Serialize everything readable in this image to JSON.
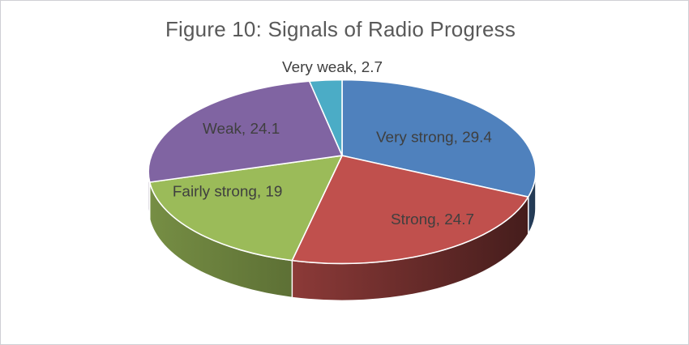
{
  "chart_data": {
    "type": "pie",
    "style": "3d-pie",
    "title": "Figure 10: Signals of Radio Progress",
    "categories": [
      "Very strong",
      "Strong",
      "Fairly strong",
      "Weak",
      "Very weak"
    ],
    "values": [
      29.4,
      24.7,
      19,
      24.1,
      2.7
    ],
    "data_labels": [
      "Very strong, 29.4",
      "Strong, 24.7",
      "Fairly strong, 19",
      "Weak, 24.1",
      "Very weak, 2.7"
    ],
    "colors": [
      "#4F81BD",
      "#C0504D",
      "#9BBB59",
      "#8064A2",
      "#4BACC6"
    ],
    "start_angle_deg": 0,
    "direction": "clockwise",
    "legend": "none",
    "gridlines": false,
    "title_color": "#595959",
    "label_color": "#3F3F3F",
    "separator_color": "#FFFFFF",
    "background_color": "#FFFFFF",
    "frame_border_color": "#CFCFD4"
  }
}
